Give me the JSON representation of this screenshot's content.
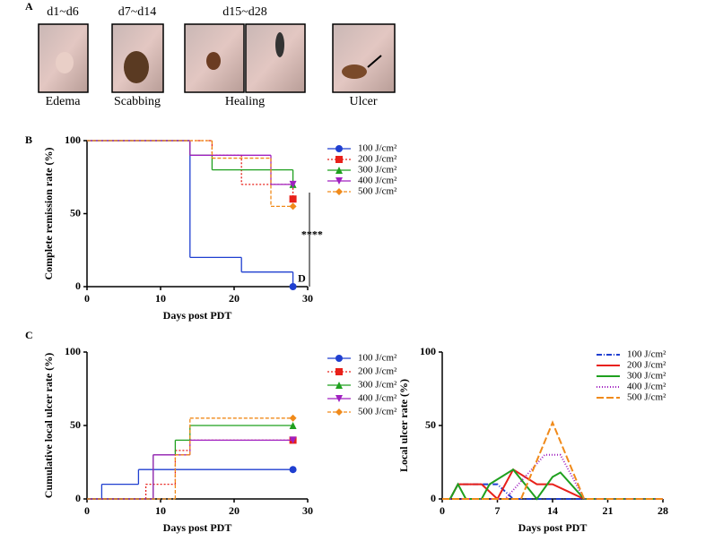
{
  "panels": {
    "a": "A",
    "b": "B",
    "c": "C"
  },
  "photos": {
    "groups": [
      "d1~d6",
      "d7~d14",
      "d15~d28"
    ],
    "captions": [
      "Edema",
      "Scabbing",
      "Healing",
      "Ulcer"
    ]
  },
  "chart_data": [
    {
      "type": "line",
      "step": true,
      "x_label": "Days post PDT",
      "y_label": "Complete remission rate (%)",
      "xlim": [
        0,
        30
      ],
      "xticks": [
        0,
        10,
        20,
        30
      ],
      "ylim": [
        0,
        100
      ],
      "yticks": [
        0,
        50,
        100
      ],
      "annotations": [
        {
          "text": "****",
          "x": 30.6,
          "y": 35
        },
        {
          "text": "D",
          "x": 29.2,
          "y": 5
        }
      ],
      "series": [
        {
          "name": "100 J/cm²",
          "color": "#1f3fd0",
          "marker": "circle",
          "dash": "none",
          "x": [
            0,
            14,
            21,
            28
          ],
          "values": [
            100,
            20,
            10,
            0
          ]
        },
        {
          "name": "200 J/cm²",
          "color": "#e8201a",
          "marker": "square",
          "dash": "2,2",
          "x": [
            0,
            17,
            21,
            28
          ],
          "values": [
            100,
            90,
            70,
            60
          ]
        },
        {
          "name": "300 J/cm²",
          "color": "#1fa01f",
          "marker": "triangle",
          "dash": "none",
          "x": [
            0,
            14,
            17,
            28
          ],
          "values": [
            100,
            90,
            80,
            70
          ]
        },
        {
          "name": "400 J/cm²",
          "color": "#a020c0",
          "marker": "triangle-down",
          "dash": "none",
          "x": [
            0,
            14,
            25,
            28
          ],
          "values": [
            100,
            90,
            70,
            70
          ]
        },
        {
          "name": "500 J/cm²",
          "color": "#f08a1a",
          "marker": "diamond",
          "dash": "4,2",
          "x": [
            0,
            17,
            25,
            28
          ],
          "values": [
            100,
            88,
            55,
            55
          ]
        }
      ]
    },
    {
      "type": "line",
      "step": true,
      "x_label": "Days post PDT",
      "y_label": "Cumulative local ulcer rate (%)",
      "xlim": [
        0,
        30
      ],
      "xticks": [
        0,
        10,
        20,
        30
      ],
      "ylim": [
        0,
        100
      ],
      "yticks": [
        0,
        50,
        100
      ],
      "series": [
        {
          "name": "100 J/cm²",
          "color": "#1f3fd0",
          "marker": "circle",
          "dash": "none",
          "x": [
            0,
            2,
            7,
            28
          ],
          "values": [
            0,
            10,
            20,
            20
          ]
        },
        {
          "name": "200 J/cm²",
          "color": "#e8201a",
          "marker": "square",
          "dash": "2,2",
          "x": [
            0,
            8,
            12,
            14,
            28
          ],
          "values": [
            0,
            10,
            33,
            40,
            40
          ]
        },
        {
          "name": "300 J/cm²",
          "color": "#1fa01f",
          "marker": "triangle",
          "dash": "none",
          "x": [
            0,
            9,
            12,
            14,
            28
          ],
          "values": [
            0,
            30,
            40,
            50,
            50
          ]
        },
        {
          "name": "400 J/cm²",
          "color": "#a020c0",
          "marker": "triangle-down",
          "dash": "none",
          "x": [
            0,
            9,
            14,
            28
          ],
          "values": [
            0,
            30,
            40,
            40
          ]
        },
        {
          "name": "500 J/cm²",
          "color": "#f08a1a",
          "marker": "diamond",
          "dash": "4,2",
          "x": [
            0,
            12,
            14,
            28
          ],
          "values": [
            0,
            30,
            55,
            55
          ]
        }
      ]
    },
    {
      "type": "line",
      "step": false,
      "x_label": "Days post PDT",
      "y_label": "Local ulcer rate (%)",
      "xlim": [
        0,
        28
      ],
      "xticks": [
        0,
        7,
        14,
        21,
        28
      ],
      "ylim": [
        0,
        100
      ],
      "yticks": [
        0,
        50,
        100
      ],
      "series": [
        {
          "name": "100 J/cm²",
          "color": "#1f3fd0",
          "dash": "6,2,1,2",
          "x": [
            0,
            1,
            2,
            7,
            9,
            18,
            28
          ],
          "values": [
            0,
            0,
            10,
            10,
            0,
            0,
            0
          ]
        },
        {
          "name": "200 J/cm²",
          "color": "#e8201a",
          "dash": "none",
          "x": [
            0,
            1,
            2,
            5,
            7,
            9,
            12,
            14,
            16,
            18,
            28
          ],
          "values": [
            0,
            0,
            10,
            10,
            0,
            20,
            10,
            10,
            5,
            0,
            0
          ]
        },
        {
          "name": "300 J/cm²",
          "color": "#1fa01f",
          "dash": "none",
          "x": [
            0,
            1,
            2,
            3,
            5,
            6,
            9,
            12,
            14,
            15,
            18,
            28
          ],
          "values": [
            0,
            0,
            10,
            0,
            0,
            10,
            20,
            0,
            15,
            18,
            0,
            0
          ]
        },
        {
          "name": "400 J/cm²",
          "color": "#a020c0",
          "dash": "1,2",
          "x": [
            0,
            8,
            13,
            15,
            18,
            28
          ],
          "values": [
            0,
            0,
            30,
            30,
            0,
            0
          ]
        },
        {
          "name": "500 J/cm²",
          "color": "#f08a1a",
          "dash": "8,3",
          "x": [
            0,
            10,
            14,
            18,
            28
          ],
          "values": [
            0,
            0,
            52,
            0,
            0
          ]
        }
      ]
    }
  ]
}
